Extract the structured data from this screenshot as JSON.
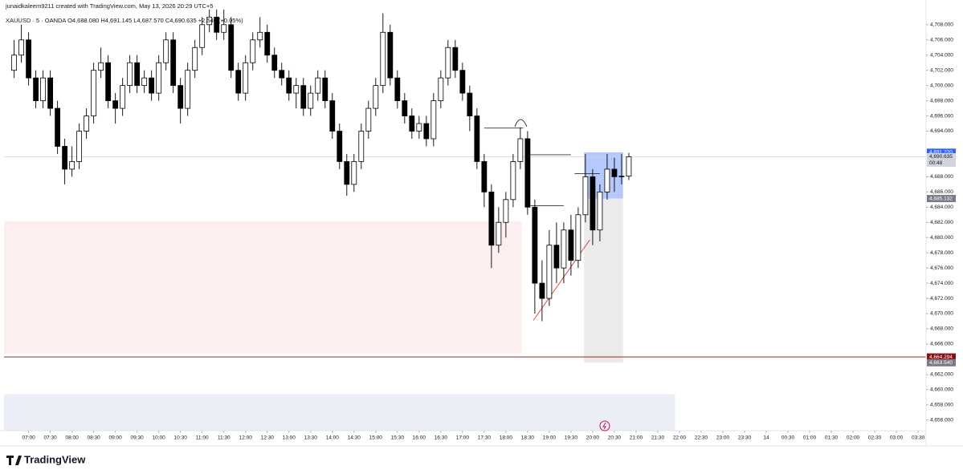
{
  "chart_data": {
    "type": "candlestick",
    "attribution": "junaidkaleem9211 created with TradingView.com, May 13, 2026 20:29 UTC+5",
    "title": "XAUUSD · 5 · OANDA  O4,688.080  H4,691.145  L4,687.570  C4,690.635  +2.540 (+0.05%)",
    "brand": "TradingView",
    "x": [
      400,
      410,
      420,
      430,
      440,
      450,
      460,
      470,
      480,
      490,
      500,
      510,
      520,
      530,
      540,
      550,
      560,
      570,
      580,
      590,
      600,
      610,
      620,
      630,
      640,
      650,
      660,
      670,
      680,
      690,
      700,
      710,
      720,
      730,
      740,
      750,
      760,
      770,
      780,
      790,
      800,
      810,
      820,
      830,
      840,
      850,
      860,
      870,
      880,
      890,
      900,
      910,
      920,
      930,
      940,
      950,
      960,
      970,
      980,
      990,
      1000,
      1010,
      1020,
      1030,
      1040,
      1050,
      1060,
      1070,
      1080,
      1090,
      1100,
      1110,
      1120,
      1130,
      1140,
      1150,
      1160,
      1170,
      1180,
      1190,
      1200,
      1210,
      1220,
      1230,
      1240,
      1250
    ],
    "open": [
      4702,
      4704,
      4706,
      4701,
      4698,
      4701,
      4697,
      4692,
      4689,
      4690,
      4694,
      4696,
      4702,
      4703,
      4698,
      4697,
      4700,
      4703,
      4700,
      4701,
      4699,
      4703,
      4706,
      4700,
      4697,
      4702,
      4705,
      4708,
      4709,
      4707,
      4708,
      4702,
      4699,
      4703,
      4706,
      4707,
      4704,
      4702,
      4701,
      4699,
      4700,
      4697,
      4699,
      4701,
      4698,
      4694,
      4690,
      4687,
      4690,
      4694,
      4697,
      4700,
      4707,
      4701,
      4698,
      4696,
      4694,
      4695,
      4693,
      4698,
      4701,
      4705,
      4702,
      4699,
      4696,
      4690,
      4686,
      4679,
      4682,
      4685,
      4690,
      4693,
      4684,
      4674,
      4672,
      4679,
      4676,
      4681,
      4677,
      4683,
      4688,
      4681,
      4686,
      4689,
      4688,
      4688.08
    ],
    "high": [
      4706,
      4708,
      4707,
      4702,
      4702,
      4702,
      4698,
      4693,
      4692,
      4695,
      4697,
      4703,
      4705,
      4704,
      4699,
      4701,
      4704,
      4704,
      4702,
      4702,
      4704,
      4707,
      4707,
      4701,
      4703,
      4706,
      4709,
      4710,
      4710,
      4710,
      4709,
      4703,
      4704,
      4707,
      4709,
      4708,
      4705,
      4703,
      4702,
      4701,
      4701,
      4700,
      4702,
      4702,
      4699,
      4695,
      4691,
      4691,
      4695,
      4698,
      4701,
      4709.5,
      4708,
      4702,
      4699,
      4697,
      4696,
      4696,
      4699,
      4702,
      4706,
      4706,
      4703,
      4700,
      4697,
      4691,
      4687,
      4684,
      4686,
      4691,
      4694.5,
      4694,
      4685,
      4677,
      4681,
      4682,
      4682,
      4683,
      4684,
      4691,
      4689,
      4687,
      4691,
      4690.5,
      4691,
      4691.145
    ],
    "low": [
      4701,
      4703,
      4700,
      4697,
      4697,
      4696,
      4691,
      4687,
      4688,
      4689,
      4693,
      4695,
      4701,
      4697,
      4695,
      4696,
      4699,
      4699,
      4699,
      4698,
      4698,
      4702,
      4699,
      4695,
      4696,
      4701,
      4704,
      4707,
      4706,
      4706,
      4701,
      4698,
      4698,
      4702,
      4705,
      4703,
      4701,
      4700,
      4698,
      4697,
      4696,
      4696,
      4698,
      4697,
      4693,
      4689,
      4685.5,
      4686,
      4689,
      4693,
      4696,
      4699,
      4700,
      4697,
      4695,
      4693,
      4693,
      4692,
      4692,
      4697,
      4700,
      4701,
      4698,
      4694,
      4689,
      4684,
      4676,
      4678,
      4680,
      4684,
      4689,
      4683,
      4670,
      4669,
      4671,
      4674,
      4674,
      4675,
      4676,
      4682,
      4679,
      4679.5,
      4685,
      4686,
      4687,
      4687.57
    ],
    "close": [
      4704,
      4706,
      4701,
      4698,
      4701,
      4697,
      4692,
      4689,
      4690,
      4694,
      4696,
      4702,
      4703,
      4698,
      4697,
      4700,
      4703,
      4700,
      4701,
      4699,
      4703,
      4706,
      4700,
      4697,
      4702,
      4705,
      4708,
      4709,
      4707,
      4708,
      4702,
      4699,
      4703,
      4706,
      4707,
      4704,
      4702,
      4701,
      4699,
      4700,
      4697,
      4699,
      4701,
      4698,
      4694,
      4690,
      4687,
      4690,
      4694,
      4697,
      4700,
      4707,
      4701,
      4698,
      4696,
      4694,
      4695,
      4693,
      4698,
      4701,
      4705,
      4702,
      4699,
      4696,
      4690,
      4686,
      4679,
      4682,
      4685,
      4690,
      4693,
      4684,
      4674,
      4672,
      4679,
      4676,
      4681,
      4677,
      4683,
      4688,
      4681,
      4686,
      4689,
      4688,
      4688.08,
      4690.635
    ],
    "up_color": "#ffffff",
    "down_color": "#000000",
    "outline_color": "#000000",
    "xlim": [
      386,
      1661
    ],
    "ylim": [
      4654.6,
      4710.3
    ],
    "xticks": [
      {
        "value": 420,
        "label": "07:00"
      },
      {
        "value": 450,
        "label": "07:30"
      },
      {
        "value": 480,
        "label": "08:00"
      },
      {
        "value": 510,
        "label": "08:30"
      },
      {
        "value": 540,
        "label": "09:00"
      },
      {
        "value": 570,
        "label": "09:30"
      },
      {
        "value": 600,
        "label": "10:00"
      },
      {
        "value": 630,
        "label": "10:30"
      },
      {
        "value": 660,
        "label": "11:00"
      },
      {
        "value": 690,
        "label": "11:30"
      },
      {
        "value": 720,
        "label": "12:00"
      },
      {
        "value": 750,
        "label": "12:30"
      },
      {
        "value": 780,
        "label": "13:00"
      },
      {
        "value": 810,
        "label": "13:30"
      },
      {
        "value": 840,
        "label": "14:00"
      },
      {
        "value": 870,
        "label": "14:30"
      },
      {
        "value": 900,
        "label": "15:00"
      },
      {
        "value": 930,
        "label": "15:30"
      },
      {
        "value": 960,
        "label": "16:00"
      },
      {
        "value": 990,
        "label": "16:30"
      },
      {
        "value": 1020,
        "label": "17:00"
      },
      {
        "value": 1050,
        "label": "17:30"
      },
      {
        "value": 1080,
        "label": "18:00"
      },
      {
        "value": 1110,
        "label": "18:30"
      },
      {
        "value": 1140,
        "label": "19:00"
      },
      {
        "value": 1170,
        "label": "19:30"
      },
      {
        "value": 1200,
        "label": "20:00"
      },
      {
        "value": 1230,
        "label": "20:30"
      },
      {
        "value": 1260,
        "label": "21:00"
      },
      {
        "value": 1290,
        "label": "21:30"
      },
      {
        "value": 1320,
        "label": "22:00"
      },
      {
        "value": 1350,
        "label": "22:30"
      },
      {
        "value": 1380,
        "label": "23:00"
      },
      {
        "value": 1410,
        "label": "23:30"
      },
      {
        "value": 1440,
        "label": "14"
      },
      {
        "value": 1470,
        "label": "00:30"
      },
      {
        "value": 1500,
        "label": "01:00"
      },
      {
        "value": 1530,
        "label": "01:30"
      },
      {
        "value": 1560,
        "label": "02:00"
      },
      {
        "value": 1590,
        "label": "02:30"
      },
      {
        "value": 1620,
        "label": "03:00"
      },
      {
        "value": 1650,
        "label": "03:30"
      }
    ],
    "yticks": [
      {
        "value": 4656,
        "label": "4,656.000"
      },
      {
        "value": 4658,
        "label": "4,658.000"
      },
      {
        "value": 4660,
        "label": "4,660.000"
      },
      {
        "value": 4662,
        "label": "4,662.000"
      },
      {
        "value": 4666,
        "label": "4,666.000"
      },
      {
        "value": 4668,
        "label": "4,668.000"
      },
      {
        "value": 4670,
        "label": "4,670.000"
      },
      {
        "value": 4672,
        "label": "4,672.000"
      },
      {
        "value": 4674,
        "label": "4,674.000"
      },
      {
        "value": 4676,
        "label": "4,676.000"
      },
      {
        "value": 4678,
        "label": "4,678.000"
      },
      {
        "value": 4680,
        "label": "4,680.000"
      },
      {
        "value": 4682,
        "label": "4,682.000"
      },
      {
        "value": 4684,
        "label": "4,684.000"
      },
      {
        "value": 4686,
        "label": "4,686.000"
      },
      {
        "value": 4688,
        "label": "4,688.000"
      },
      {
        "value": 4694,
        "label": "4,694.000"
      },
      {
        "value": 4696,
        "label": "4,696.000"
      },
      {
        "value": 4698,
        "label": "4,698.000"
      },
      {
        "value": 4700,
        "label": "4,700.000"
      },
      {
        "value": 4702,
        "label": "4,702.000"
      },
      {
        "value": 4704,
        "label": "4,704.000"
      },
      {
        "value": 4706,
        "label": "4,706.000"
      },
      {
        "value": 4708,
        "label": "4,708.000"
      }
    ],
    "price_labels": [
      {
        "value": 4691.22,
        "label": "4,691.220",
        "color": "#2962ff"
      },
      {
        "value": 4690.635,
        "label": "4,690.635",
        "color": "#d1d4dc",
        "countdown": "00:48"
      },
      {
        "value": 4685.132,
        "label": "4,685.132",
        "color": "#787b86"
      },
      {
        "value": 4664.294,
        "label": "4,664.294",
        "color": "#880e0e"
      },
      {
        "value": 4663.54,
        "label": "4,663.540",
        "color": "#787b86"
      }
    ],
    "zones": [
      {
        "x": [
          386,
          1102
        ],
        "y": [
          4664.75,
          4682.16
        ],
        "color": "#fdecec"
      },
      {
        "x": [
          386,
          1314
        ],
        "y": [
          4654.6,
          4659.4
        ],
        "color": "#e8ebf5"
      },
      {
        "x": [
          1188,
          1242
        ],
        "y": [
          4685.132,
          4691.22
        ],
        "color": "#a8c0fb"
      },
      {
        "x": [
          1188,
          1242
        ],
        "y": [
          4663.54,
          4685.132
        ],
        "color": "#e8e8e8"
      }
    ],
    "lines": [
      {
        "x": [
          386,
          1661
        ],
        "y": [
          4664.294,
          4664.294
        ],
        "color": "#880e0e"
      },
      {
        "x": [
          1118,
          1196
        ],
        "y": [
          4669.1,
          4679.7
        ],
        "color": "#e53935"
      },
      {
        "x": [
          1050,
          1104
        ],
        "y": [
          4694.4,
          4694.4
        ],
        "color": "#333333"
      },
      {
        "x": [
          1110,
          1170
        ],
        "y": [
          4690.9,
          4690.9
        ],
        "color": "#333333"
      },
      {
        "x": [
          1114,
          1160
        ],
        "y": [
          4684.2,
          4684.2
        ],
        "color": "#333333"
      },
      {
        "x": [
          1175,
          1210
        ],
        "y": [
          4688.4,
          4688.4
        ],
        "color": "#333333"
      }
    ]
  }
}
